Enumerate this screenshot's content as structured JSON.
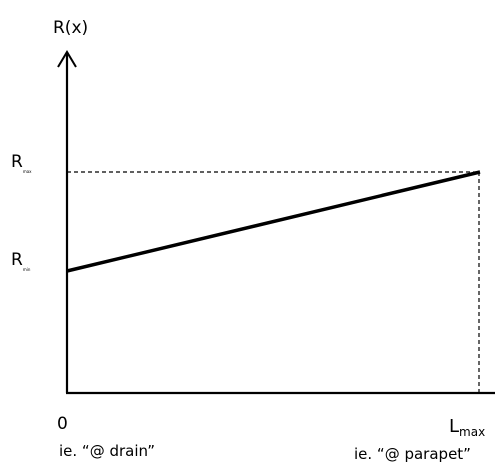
{
  "diagram": {
    "y_axis_label": "R(x)",
    "y_ticks": {
      "r_max": {
        "main": "R",
        "sub": "max"
      },
      "r_min": {
        "main": "R",
        "sub": "min"
      }
    },
    "x_ticks": {
      "origin": "0",
      "l_max": {
        "main": "L",
        "sub": "max"
      }
    },
    "notes": {
      "left": "ie. “@ drain”",
      "right": "ie. “@ parapet”"
    }
  },
  "colors": {
    "line": "#000000",
    "background": "#ffffff"
  }
}
